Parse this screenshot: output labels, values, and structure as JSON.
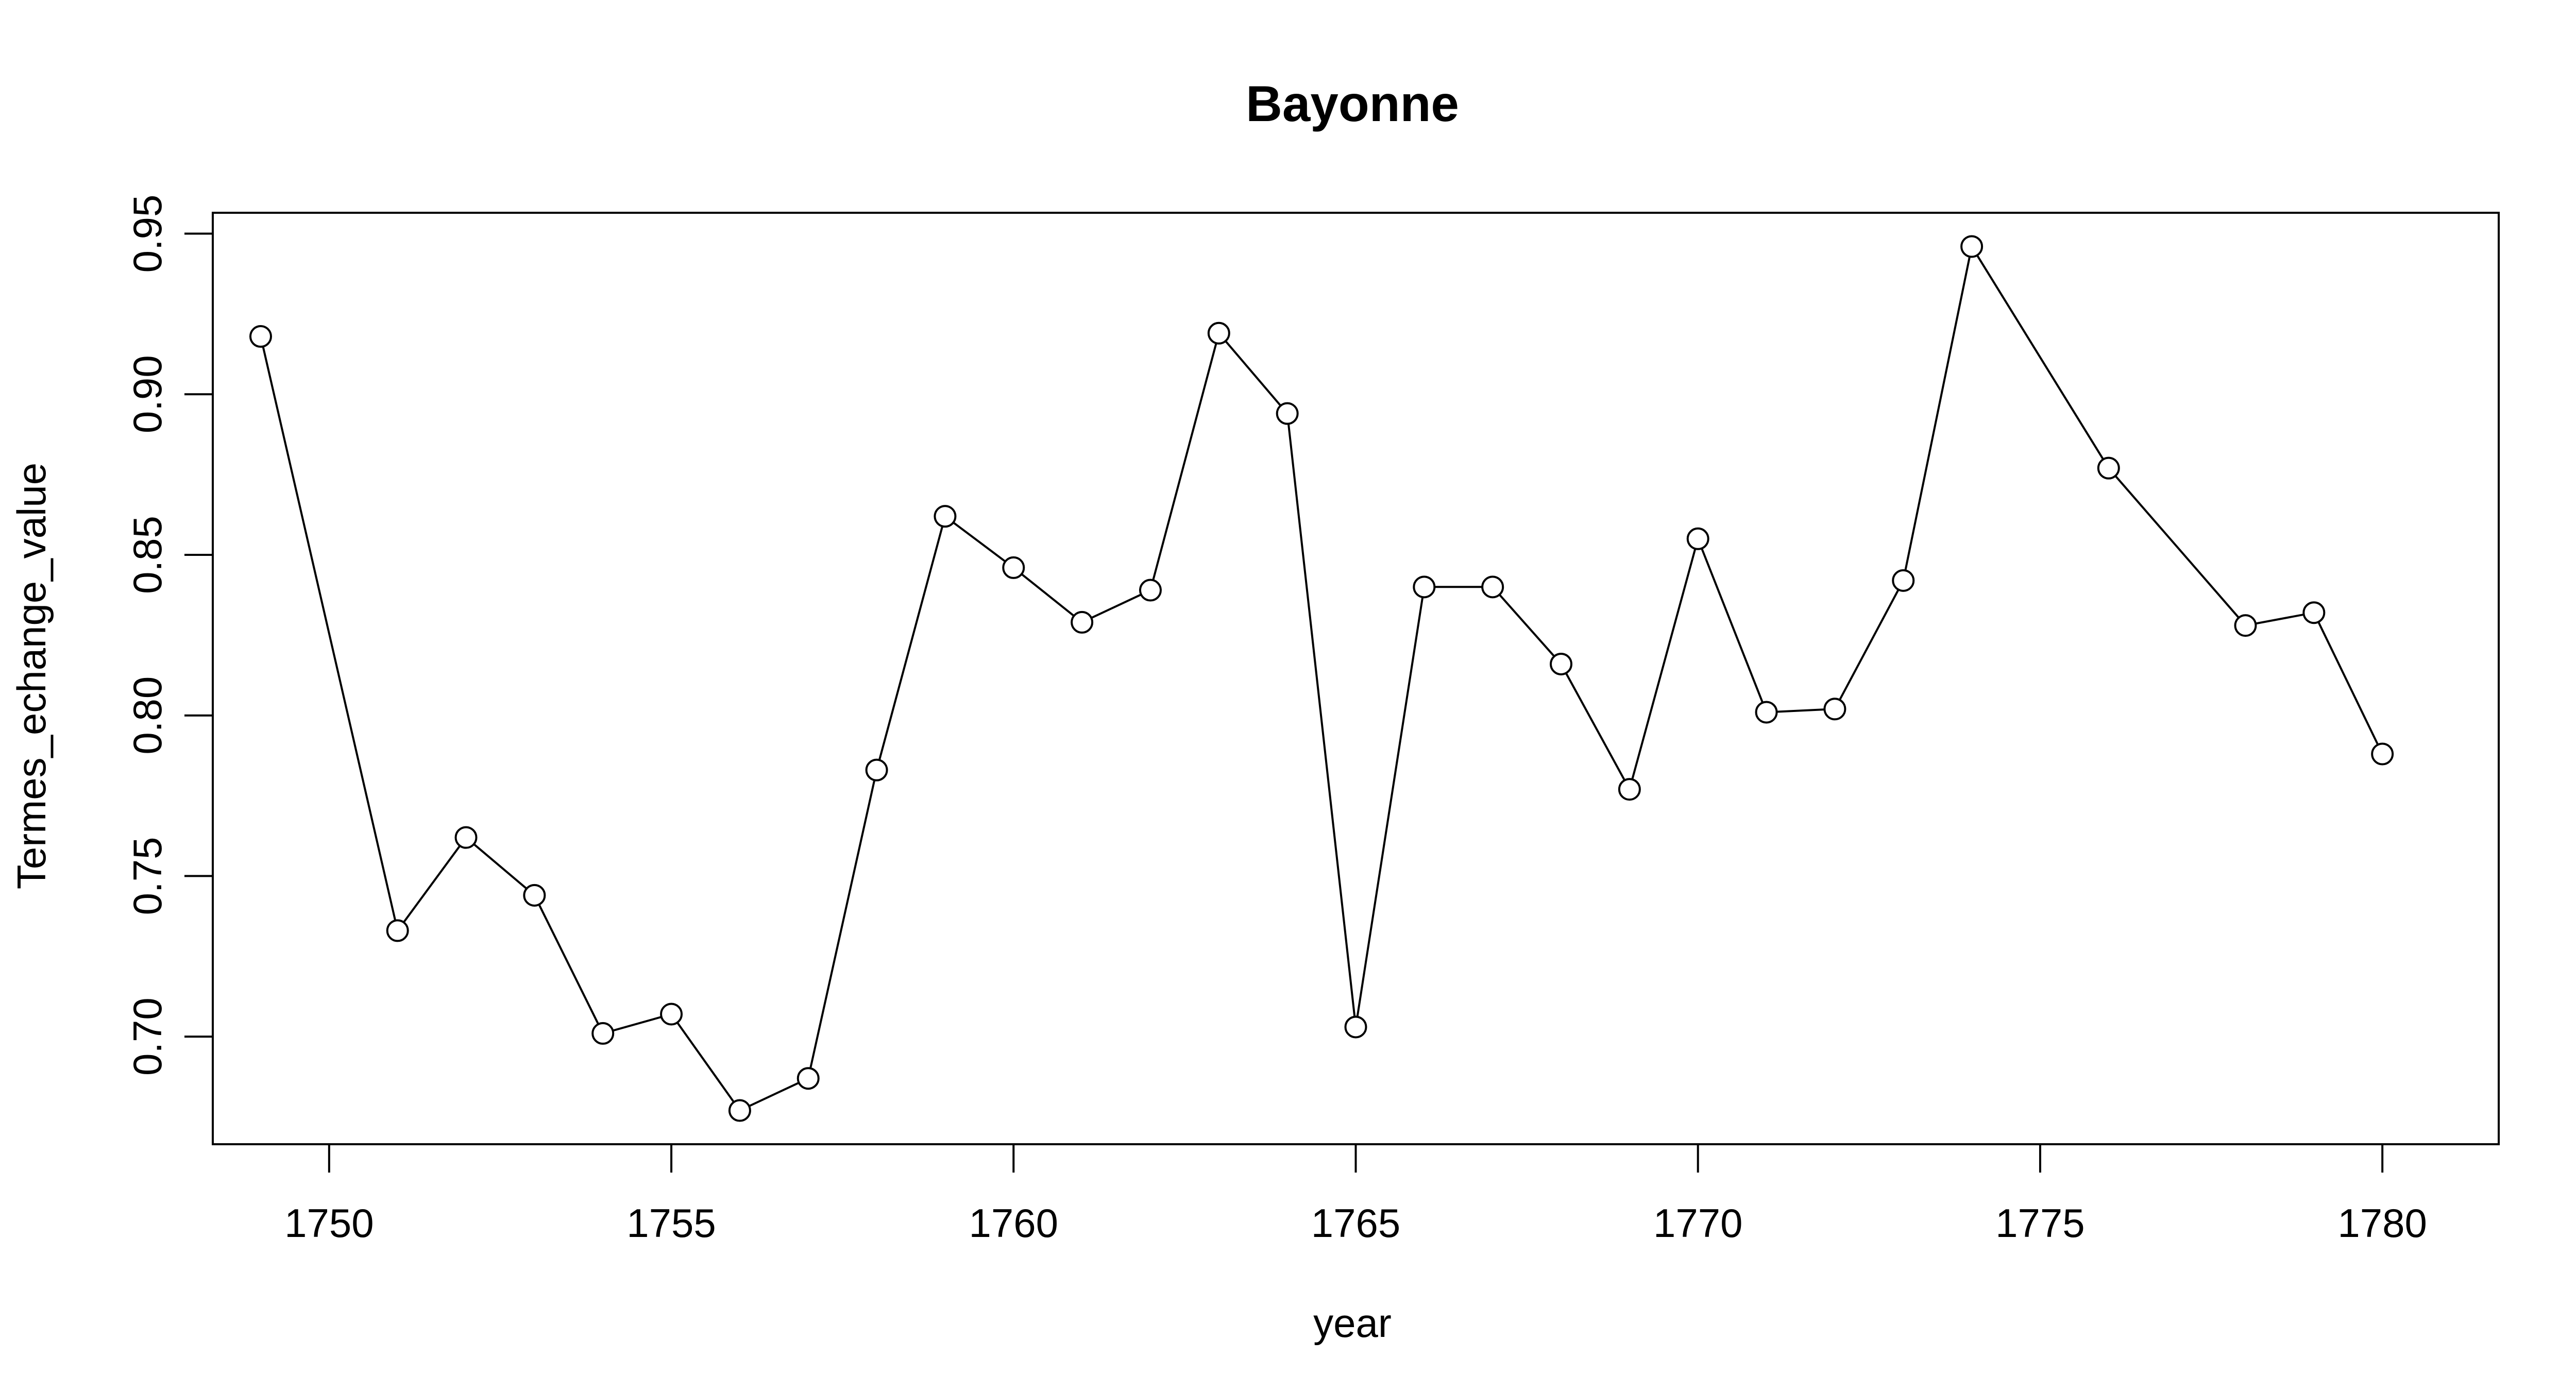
{
  "chart_data": {
    "type": "line",
    "title": "Bayonne",
    "xlabel": "year",
    "ylabel": "Termes_echange_value",
    "xlim": [
      1748.3,
      1781.7
    ],
    "ylim": [
      0.6665,
      0.9565
    ],
    "x_ticks": [
      1750,
      1755,
      1760,
      1765,
      1770,
      1775,
      1780
    ],
    "x_tick_labels": [
      "1750",
      "1755",
      "1760",
      "1765",
      "1770",
      "1775",
      "1780"
    ],
    "y_ticks": [
      0.7,
      0.75,
      0.8,
      0.85,
      0.9,
      0.95
    ],
    "y_tick_labels": [
      "0.70",
      "0.75",
      "0.80",
      "0.85",
      "0.90",
      "0.95"
    ],
    "grid": false,
    "marker": "open-circle",
    "line_color": "#000000",
    "series": [
      {
        "x": [
          1749,
          1751,
          1752,
          1753,
          1754,
          1755,
          1756,
          1757,
          1758,
          1759,
          1760,
          1761,
          1762,
          1763,
          1764,
          1765,
          1766,
          1767,
          1768,
          1769,
          1770,
          1771,
          1772,
          1773,
          1774,
          1776,
          1778,
          1779,
          1780
        ],
        "values": [
          0.918,
          0.733,
          0.762,
          0.744,
          0.701,
          0.707,
          0.677,
          0.687,
          0.783,
          0.862,
          0.846,
          0.829,
          0.839,
          0.919,
          0.894,
          0.703,
          0.84,
          0.84,
          0.816,
          0.777,
          0.855,
          0.801,
          0.802,
          0.842,
          0.946,
          0.877,
          0.828,
          0.832,
          0.788
        ]
      }
    ]
  }
}
